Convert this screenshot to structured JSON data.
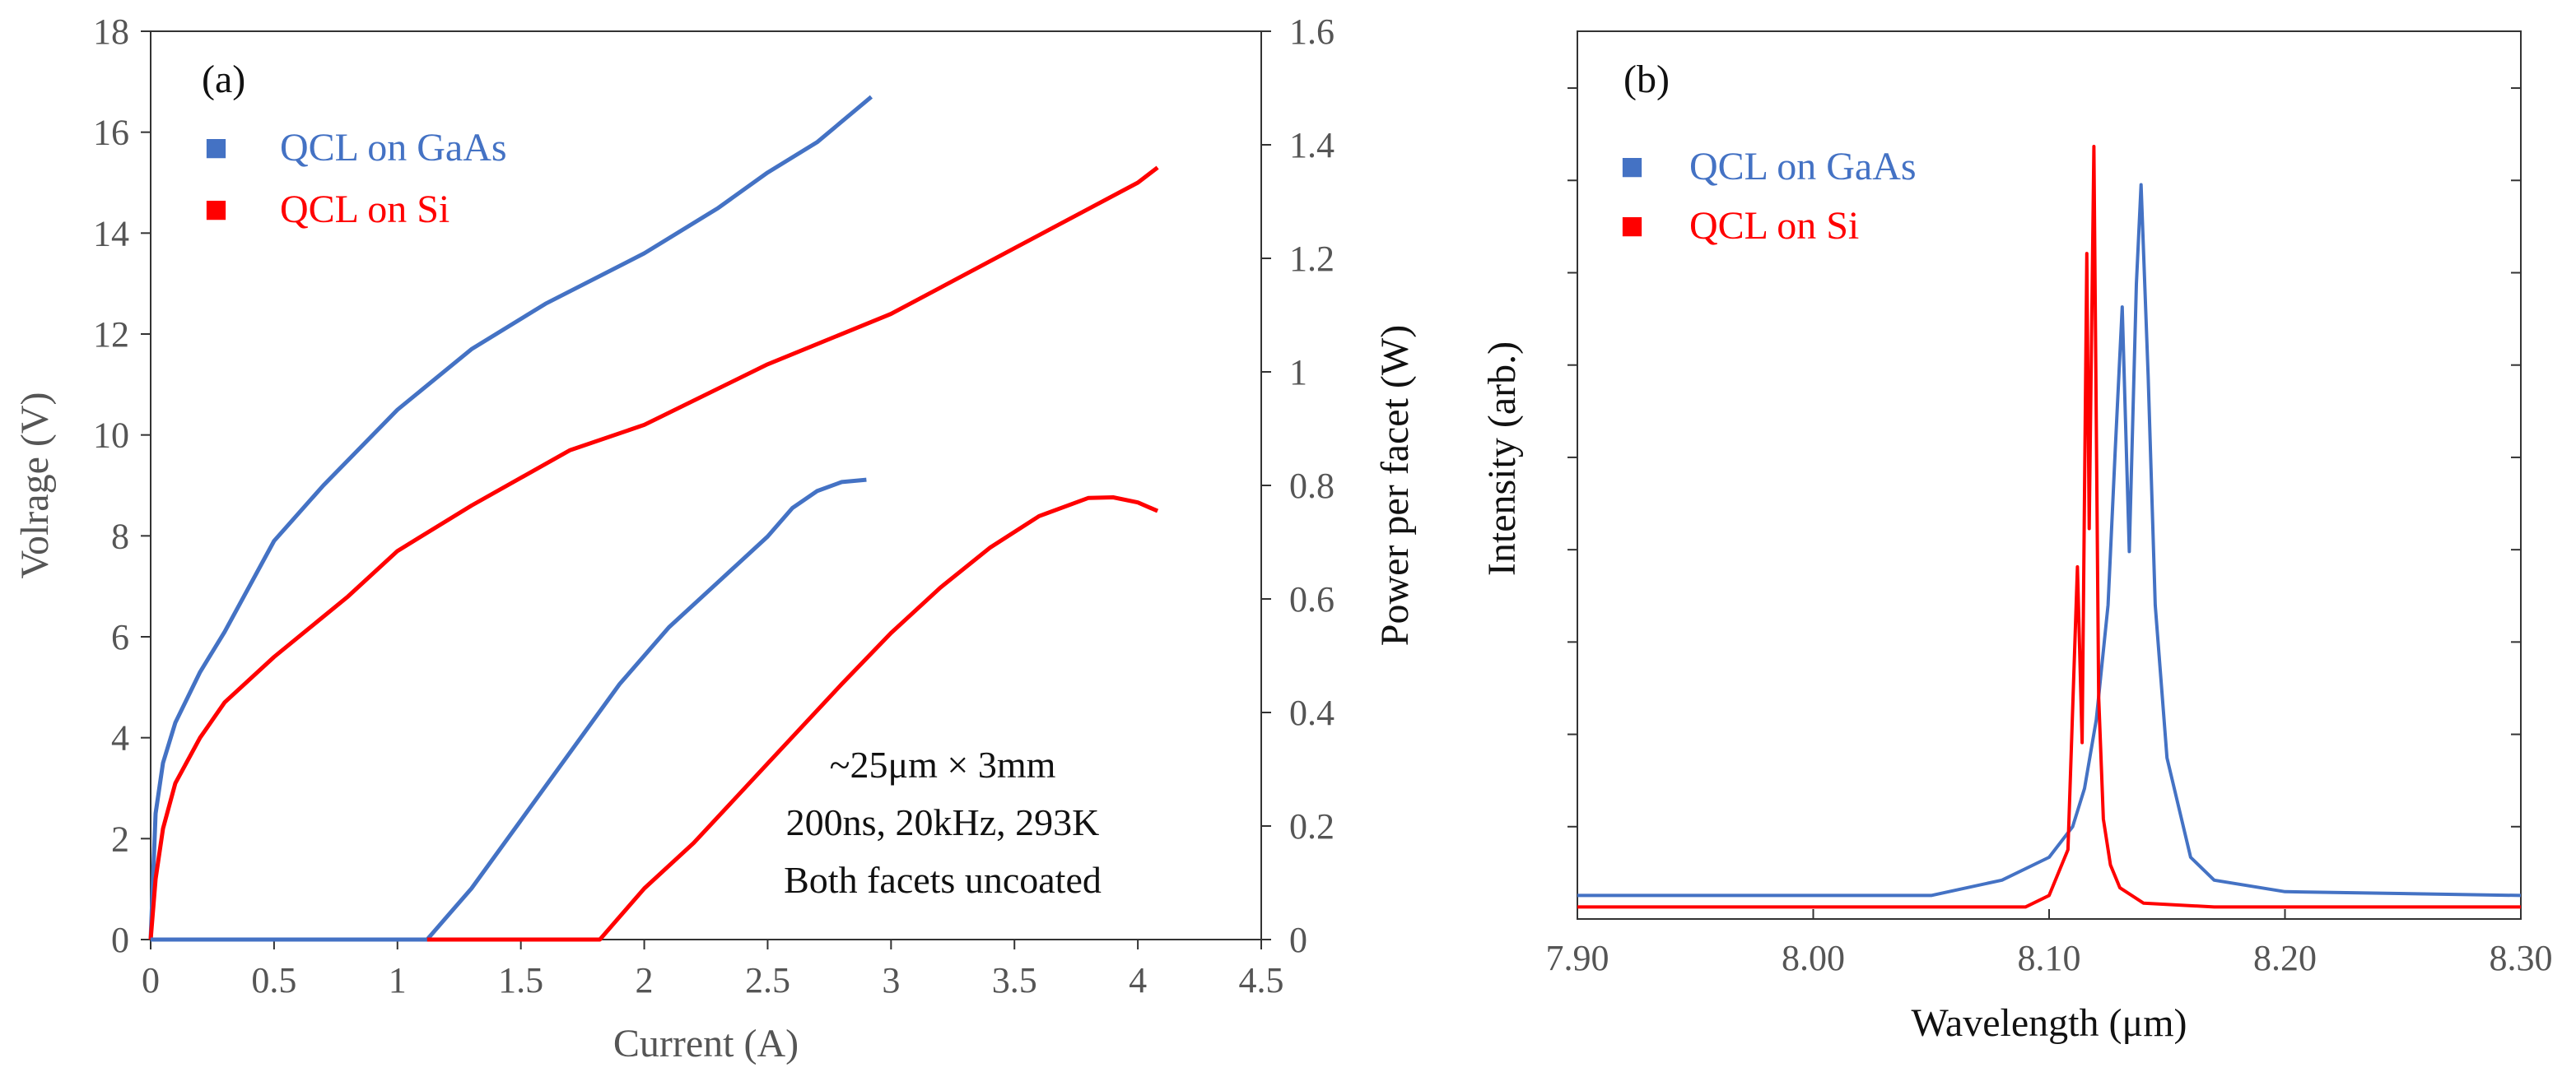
{
  "chart_data": [
    {
      "panel_label": "(a)",
      "type": "line",
      "xlabel": "Current (A)",
      "ylabel": "Volrage (V)",
      "y2label": "Power per facet (W)",
      "xlim": [
        0,
        4.5
      ],
      "ylim": [
        0,
        18
      ],
      "y2lim": [
        0,
        1.6
      ],
      "x_ticks": [
        "0",
        "0.5",
        "1",
        "1.5",
        "2",
        "2.5",
        "3",
        "3.5",
        "4",
        "4.5"
      ],
      "y_ticks": [
        "0",
        "2",
        "4",
        "6",
        "8",
        "10",
        "12",
        "14",
        "16",
        "18"
      ],
      "y2_ticks": [
        "0",
        "0.2",
        "0.4",
        "0.6",
        "0.8",
        "1",
        "1.2",
        "1.4",
        "1.6"
      ],
      "legend": [
        {
          "name": "QCL on GaAs",
          "color": "#4472c4",
          "marker": "■"
        },
        {
          "name": "QCL on Si",
          "color": "#ff0000",
          "marker": "■"
        }
      ],
      "annotation": [
        "~25μm × 3mm",
        "200ns, 20kHz, 293K",
        "Both facets uncoated"
      ],
      "series": [
        {
          "name": "QCL on GaAs (Voltage)",
          "axis": "left",
          "color": "#4472c4",
          "points": [
            [
              0,
              0
            ],
            [
              0.02,
              2.5
            ],
            [
              0.05,
              3.5
            ],
            [
              0.1,
              4.3
            ],
            [
              0.2,
              5.3
            ],
            [
              0.3,
              6.1
            ],
            [
              0.5,
              7.9
            ],
            [
              0.7,
              9.0
            ],
            [
              1.0,
              10.5
            ],
            [
              1.3,
              11.7
            ],
            [
              1.6,
              12.6
            ],
            [
              2.0,
              13.6
            ],
            [
              2.3,
              14.5
            ],
            [
              2.5,
              15.2
            ],
            [
              2.7,
              15.8
            ],
            [
              2.92,
              16.7
            ]
          ]
        },
        {
          "name": "QCL on Si (Voltage)",
          "axis": "left",
          "color": "#ff0000",
          "points": [
            [
              0,
              0
            ],
            [
              0.02,
              1.2
            ],
            [
              0.05,
              2.2
            ],
            [
              0.1,
              3.1
            ],
            [
              0.2,
              4.0
            ],
            [
              0.3,
              4.7
            ],
            [
              0.5,
              5.6
            ],
            [
              0.8,
              6.8
            ],
            [
              1.0,
              7.7
            ],
            [
              1.3,
              8.6
            ],
            [
              1.7,
              9.7
            ],
            [
              2.0,
              10.2
            ],
            [
              2.5,
              11.4
            ],
            [
              3.0,
              12.4
            ],
            [
              3.5,
              13.7
            ],
            [
              4.0,
              15.0
            ],
            [
              4.08,
              15.3
            ]
          ]
        },
        {
          "name": "QCL on GaAs (Power)",
          "axis": "right",
          "color": "#4472c4",
          "points": [
            [
              0,
              0
            ],
            [
              1.12,
              0
            ],
            [
              1.2,
              0.04
            ],
            [
              1.3,
              0.09
            ],
            [
              1.5,
              0.21
            ],
            [
              1.7,
              0.33
            ],
            [
              1.9,
              0.45
            ],
            [
              2.1,
              0.55
            ],
            [
              2.3,
              0.63
            ],
            [
              2.5,
              0.71
            ],
            [
              2.6,
              0.76
            ],
            [
              2.7,
              0.79
            ],
            [
              2.8,
              0.806
            ],
            [
              2.9,
              0.81
            ]
          ]
        },
        {
          "name": "QCL on Si (Power)",
          "axis": "right",
          "color": "#ff0000",
          "points": [
            [
              1.12,
              0
            ],
            [
              1.82,
              0
            ],
            [
              1.9,
              0.04
            ],
            [
              2.0,
              0.09
            ],
            [
              2.2,
              0.17
            ],
            [
              2.5,
              0.31
            ],
            [
              2.8,
              0.45
            ],
            [
              3.0,
              0.54
            ],
            [
              3.2,
              0.62
            ],
            [
              3.4,
              0.69
            ],
            [
              3.6,
              0.746
            ],
            [
              3.8,
              0.778
            ],
            [
              3.9,
              0.779
            ],
            [
              4.0,
              0.77
            ],
            [
              4.08,
              0.755
            ]
          ]
        }
      ]
    },
    {
      "panel_label": "(b)",
      "type": "line",
      "xlabel": "Wavelength (μm)",
      "ylabel": "Intensity (arb.)",
      "xlim": [
        7.9,
        8.3
      ],
      "ylim": [
        0,
        1.0
      ],
      "x_ticks": [
        "7.90",
        "8.00",
        "8.10",
        "8.20",
        "8.30"
      ],
      "legend": [
        {
          "name": "QCL on GaAs",
          "color": "#4472c4",
          "marker": "■"
        },
        {
          "name": "QCL on Si",
          "color": "#ff0000",
          "marker": "■"
        }
      ],
      "series": [
        {
          "name": "QCL on GaAs",
          "color": "#4472c4",
          "points": [
            [
              7.9,
              0.02
            ],
            [
              8.05,
              0.02
            ],
            [
              8.08,
              0.04
            ],
            [
              8.1,
              0.07
            ],
            [
              8.11,
              0.11
            ],
            [
              8.115,
              0.16
            ],
            [
              8.12,
              0.25
            ],
            [
              8.125,
              0.4
            ],
            [
              8.128,
              0.6
            ],
            [
              8.131,
              0.79
            ],
            [
              8.134,
              0.47
            ],
            [
              8.137,
              0.82
            ],
            [
              8.139,
              0.95
            ],
            [
              8.142,
              0.7
            ],
            [
              8.145,
              0.4
            ],
            [
              8.15,
              0.2
            ],
            [
              8.16,
              0.07
            ],
            [
              8.17,
              0.04
            ],
            [
              8.2,
              0.025
            ],
            [
              8.3,
              0.02
            ]
          ]
        },
        {
          "name": "QCL on Si",
          "color": "#ff0000",
          "points": [
            [
              7.9,
              0.005
            ],
            [
              8.09,
              0.005
            ],
            [
              8.1,
              0.02
            ],
            [
              8.108,
              0.08
            ],
            [
              8.112,
              0.45
            ],
            [
              8.114,
              0.22
            ],
            [
              8.116,
              0.86
            ],
            [
              8.117,
              0.5
            ],
            [
              8.119,
              1.0
            ],
            [
              8.121,
              0.28
            ],
            [
              8.123,
              0.12
            ],
            [
              8.126,
              0.06
            ],
            [
              8.13,
              0.03
            ],
            [
              8.14,
              0.01
            ],
            [
              8.17,
              0.005
            ],
            [
              8.3,
              0.005
            ]
          ]
        }
      ]
    }
  ]
}
